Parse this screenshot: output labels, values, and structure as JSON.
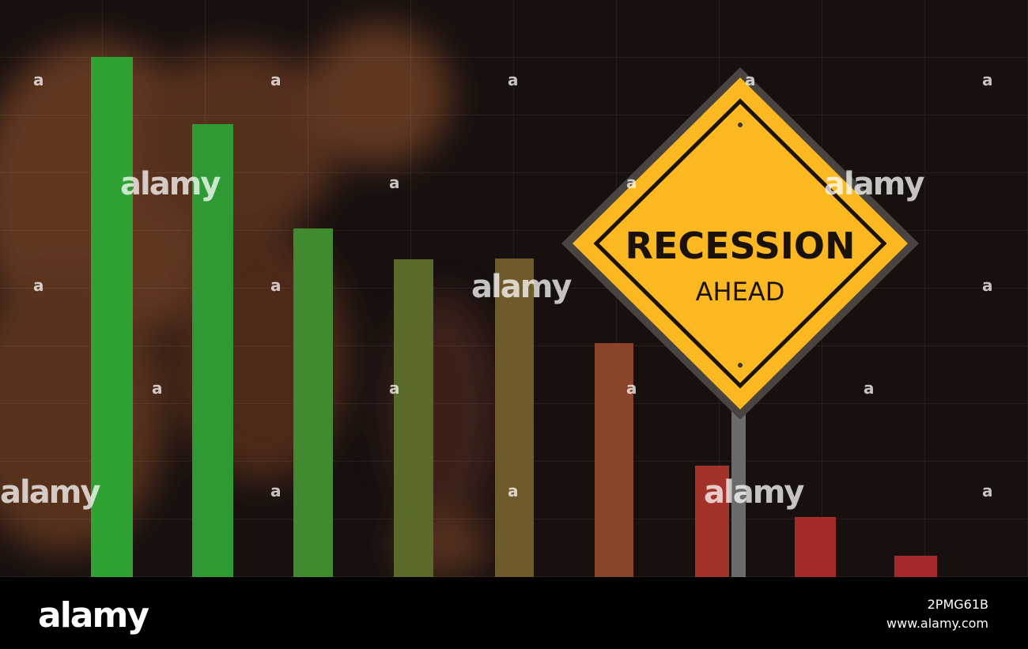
{
  "sign": {
    "title": "RECESSION",
    "subtitle": "AHEAD"
  },
  "watermark": {
    "word": "alamy",
    "mark": "a"
  },
  "footer": {
    "logo": "alamy",
    "image_id": "2PMG61B",
    "url": "www.alamy.com"
  }
}
